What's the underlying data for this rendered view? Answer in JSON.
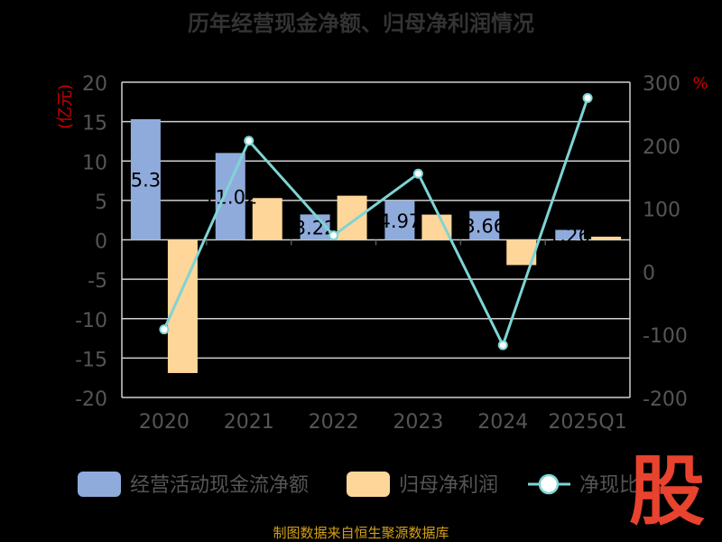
{
  "title": "历年经营现金净额、归母净利润情况",
  "source": "制图数据来自恒生聚源数据库",
  "logo_text": "股",
  "colors": {
    "background": "#000000",
    "title": "#333333",
    "axis_text": "#555555",
    "unit_text": "#cc0000",
    "grid": "#cfcfcf",
    "cash_flow_bar": "#8fabdc",
    "net_profit_bar": "#ffd699",
    "ratio_line": "#7fd4d4",
    "source_text": "#d4a017",
    "logo": "#e8432e"
  },
  "chart_data": {
    "type": "bar",
    "categories": [
      "2020",
      "2021",
      "2022",
      "2023",
      "2024",
      "2025Q1"
    ],
    "y_left": {
      "unit": "(亿元)",
      "lim": [
        -20,
        20
      ],
      "ticks": [
        20,
        15,
        10,
        5,
        0,
        -5,
        -10,
        -15,
        -20
      ]
    },
    "y_right": {
      "unit": "%",
      "lim": [
        -200,
        300
      ],
      "ticks": [
        300,
        200,
        100,
        0,
        -100,
        -200
      ]
    },
    "grid": true,
    "legend_position": "bottom",
    "series": [
      {
        "name": "经营活动现金流净额",
        "type": "bar",
        "axis": "left",
        "values": [
          15.31,
          11.02,
          3.22,
          4.97,
          3.66,
          1.26
        ],
        "labels": [
          "15.31",
          "11.02",
          "3.22",
          "4.97",
          "3.66",
          "1.26"
        ]
      },
      {
        "name": "归母净利润",
        "type": "bar",
        "axis": "left",
        "values": [
          -16.9,
          5.3,
          5.6,
          3.2,
          -3.2,
          0.4
        ]
      },
      {
        "name": "净现比",
        "type": "line",
        "axis": "right",
        "values": [
          -92,
          207,
          57,
          155,
          -117,
          275
        ]
      }
    ]
  }
}
